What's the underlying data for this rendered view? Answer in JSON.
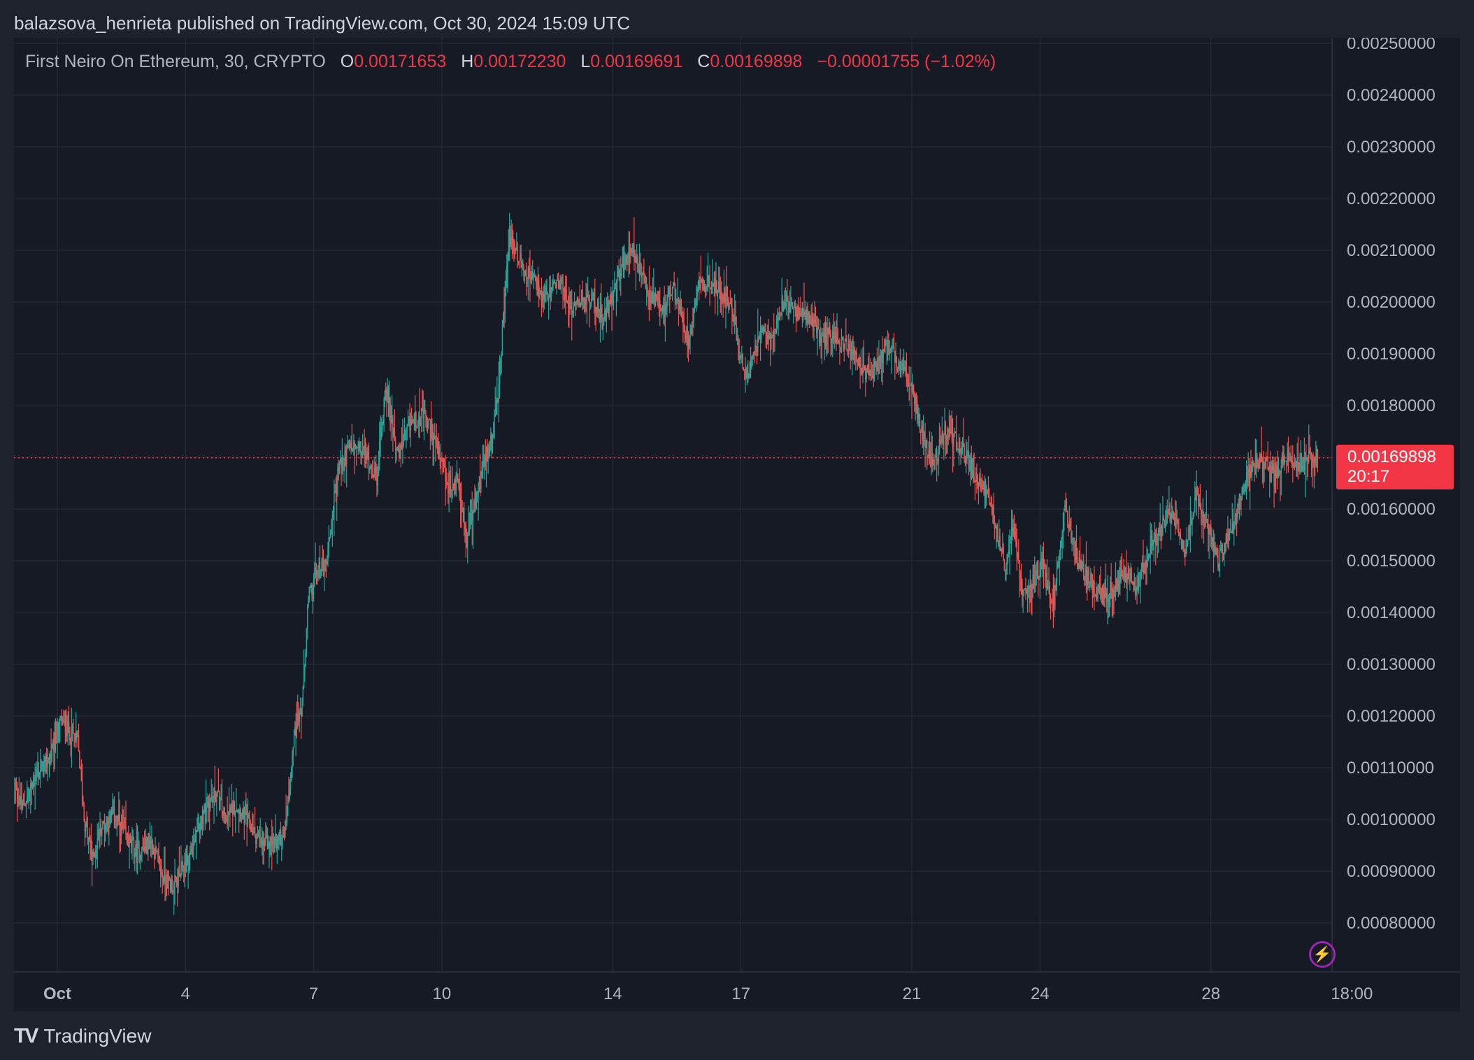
{
  "header": {
    "published": "balazsova_henrieta published on TradingView.com, Oct 30, 2024 15:09 UTC"
  },
  "legend": {
    "symbol": "First Neiro On Ethereum, 30, CRYPTO",
    "open_label": "O",
    "open": "0.00171653",
    "high_label": "H",
    "high": "0.00172230",
    "low_label": "L",
    "low": "0.00169691",
    "close_label": "C",
    "close": "0.00169898",
    "change": "−0.00001755 (−1.02%)"
  },
  "price_tag": {
    "price": "0.00169898",
    "countdown": "20:17"
  },
  "footer": {
    "brand": "TradingView"
  },
  "colors": {
    "up": "#26a69a",
    "down": "#ef5350",
    "background": "#161a25",
    "grid": "#262a36",
    "tag": "#f23645"
  },
  "chart_data": {
    "type": "candlestick",
    "interval": "30",
    "ylim": [
      0.00075,
      0.0025
    ],
    "y_ticks": [
      "0.00250000",
      "0.00240000",
      "0.00230000",
      "0.00220000",
      "0.00210000",
      "0.00200000",
      "0.00190000",
      "0.00180000",
      "0.00170000",
      "0.00160000",
      "0.00150000",
      "0.00140000",
      "0.00130000",
      "0.00120000",
      "0.00110000",
      "0.00100000",
      "0.00090000",
      "0.00080000"
    ],
    "x_ticks": [
      {
        "label": "Oct",
        "day": 0,
        "bold": true
      },
      {
        "label": "4",
        "day": 3
      },
      {
        "label": "7",
        "day": 6
      },
      {
        "label": "10",
        "day": 9
      },
      {
        "label": "14",
        "day": 13
      },
      {
        "label": "17",
        "day": 16
      },
      {
        "label": "21",
        "day": 20
      },
      {
        "label": "24",
        "day": 23
      },
      {
        "label": "28",
        "day": 27
      },
      {
        "label": "18:00",
        "day": 30.3
      }
    ],
    "current_price": 0.00169898,
    "anchors": [
      [
        -1.0,
        0.00107
      ],
      [
        -0.8,
        0.00102
      ],
      [
        -0.5,
        0.00108
      ],
      [
        -0.15,
        0.00112
      ],
      [
        0.1,
        0.00119
      ],
      [
        0.5,
        0.00115
      ],
      [
        0.65,
        0.001
      ],
      [
        0.85,
        0.00092
      ],
      [
        1.0,
        0.00098
      ],
      [
        1.35,
        0.00101
      ],
      [
        1.6,
        0.00097
      ],
      [
        1.9,
        0.00093
      ],
      [
        2.2,
        0.00096
      ],
      [
        2.5,
        0.00089
      ],
      [
        2.75,
        0.00087
      ],
      [
        3.05,
        0.00092
      ],
      [
        3.3,
        0.00097
      ],
      [
        3.5,
        0.00103
      ],
      [
        3.75,
        0.00105
      ],
      [
        3.95,
        0.001
      ],
      [
        4.2,
        0.00103
      ],
      [
        4.5,
        0.00099
      ],
      [
        4.8,
        0.00095
      ],
      [
        5.2,
        0.00096
      ],
      [
        5.35,
        0.00098
      ],
      [
        5.6,
        0.00119
      ],
      [
        5.75,
        0.00121
      ],
      [
        5.9,
        0.00143
      ],
      [
        6.1,
        0.00148
      ],
      [
        6.3,
        0.00149
      ],
      [
        6.6,
        0.00168
      ],
      [
        6.9,
        0.00172
      ],
      [
        7.2,
        0.00171
      ],
      [
        7.5,
        0.00166
      ],
      [
        7.7,
        0.00184
      ],
      [
        8.0,
        0.0017
      ],
      [
        8.3,
        0.00177
      ],
      [
        8.6,
        0.00178
      ],
      [
        8.8,
        0.00175
      ],
      [
        9.0,
        0.00169
      ],
      [
        9.2,
        0.00163
      ],
      [
        9.4,
        0.00166
      ],
      [
        9.6,
        0.00154
      ],
      [
        9.9,
        0.00165
      ],
      [
        10.3,
        0.00178
      ],
      [
        10.6,
        0.00213
      ],
      [
        10.9,
        0.00207
      ],
      [
        11.2,
        0.00204
      ],
      [
        11.4,
        0.002
      ],
      [
        11.8,
        0.00204
      ],
      [
        12.1,
        0.00198
      ],
      [
        12.3,
        0.00201
      ],
      [
        12.6,
        0.002
      ],
      [
        12.8,
        0.00196
      ],
      [
        13.1,
        0.00204
      ],
      [
        13.3,
        0.00208
      ],
      [
        13.5,
        0.0021
      ],
      [
        13.7,
        0.00205
      ],
      [
        13.9,
        0.00201
      ],
      [
        14.2,
        0.00198
      ],
      [
        14.4,
        0.00203
      ],
      [
        14.6,
        0.00199
      ],
      [
        14.8,
        0.00192
      ],
      [
        15.0,
        0.00204
      ],
      [
        15.4,
        0.00203
      ],
      [
        15.8,
        0.002
      ],
      [
        16.0,
        0.00189
      ],
      [
        16.2,
        0.00186
      ],
      [
        16.5,
        0.00194
      ],
      [
        16.7,
        0.00193
      ],
      [
        17.0,
        0.002
      ],
      [
        17.3,
        0.00198
      ],
      [
        17.6,
        0.00197
      ],
      [
        17.9,
        0.00193
      ],
      [
        18.2,
        0.00194
      ],
      [
        18.4,
        0.00192
      ],
      [
        18.7,
        0.00189
      ],
      [
        18.9,
        0.00186
      ],
      [
        19.2,
        0.00187
      ],
      [
        19.5,
        0.00192
      ],
      [
        19.7,
        0.00187
      ],
      [
        20.0,
        0.00185
      ],
      [
        20.2,
        0.00177
      ],
      [
        20.5,
        0.00168
      ],
      [
        20.8,
        0.00175
      ],
      [
        21.2,
        0.00172
      ],
      [
        21.5,
        0.00166
      ],
      [
        21.8,
        0.00163
      ],
      [
        22.0,
        0.00156
      ],
      [
        22.2,
        0.00149
      ],
      [
        22.4,
        0.00157
      ],
      [
        22.6,
        0.00145
      ],
      [
        22.9,
        0.00146
      ],
      [
        23.1,
        0.0015
      ],
      [
        23.3,
        0.0014
      ],
      [
        23.6,
        0.0016
      ],
      [
        23.9,
        0.0015
      ],
      [
        24.2,
        0.00146
      ],
      [
        24.5,
        0.00143
      ],
      [
        24.8,
        0.00145
      ],
      [
        25.0,
        0.00148
      ],
      [
        25.3,
        0.00145
      ],
      [
        25.6,
        0.00153
      ],
      [
        25.8,
        0.00155
      ],
      [
        26.1,
        0.0016
      ],
      [
        26.4,
        0.00152
      ],
      [
        26.7,
        0.00163
      ],
      [
        26.9,
        0.00157
      ],
      [
        27.2,
        0.0015
      ],
      [
        27.5,
        0.00156
      ],
      [
        27.7,
        0.00162
      ],
      [
        27.9,
        0.00167
      ],
      [
        28.2,
        0.0017
      ],
      [
        28.5,
        0.00166
      ],
      [
        28.8,
        0.00171
      ],
      [
        29.1,
        0.00168
      ],
      [
        29.3,
        0.0017
      ],
      [
        29.5,
        0.0017
      ]
    ]
  }
}
